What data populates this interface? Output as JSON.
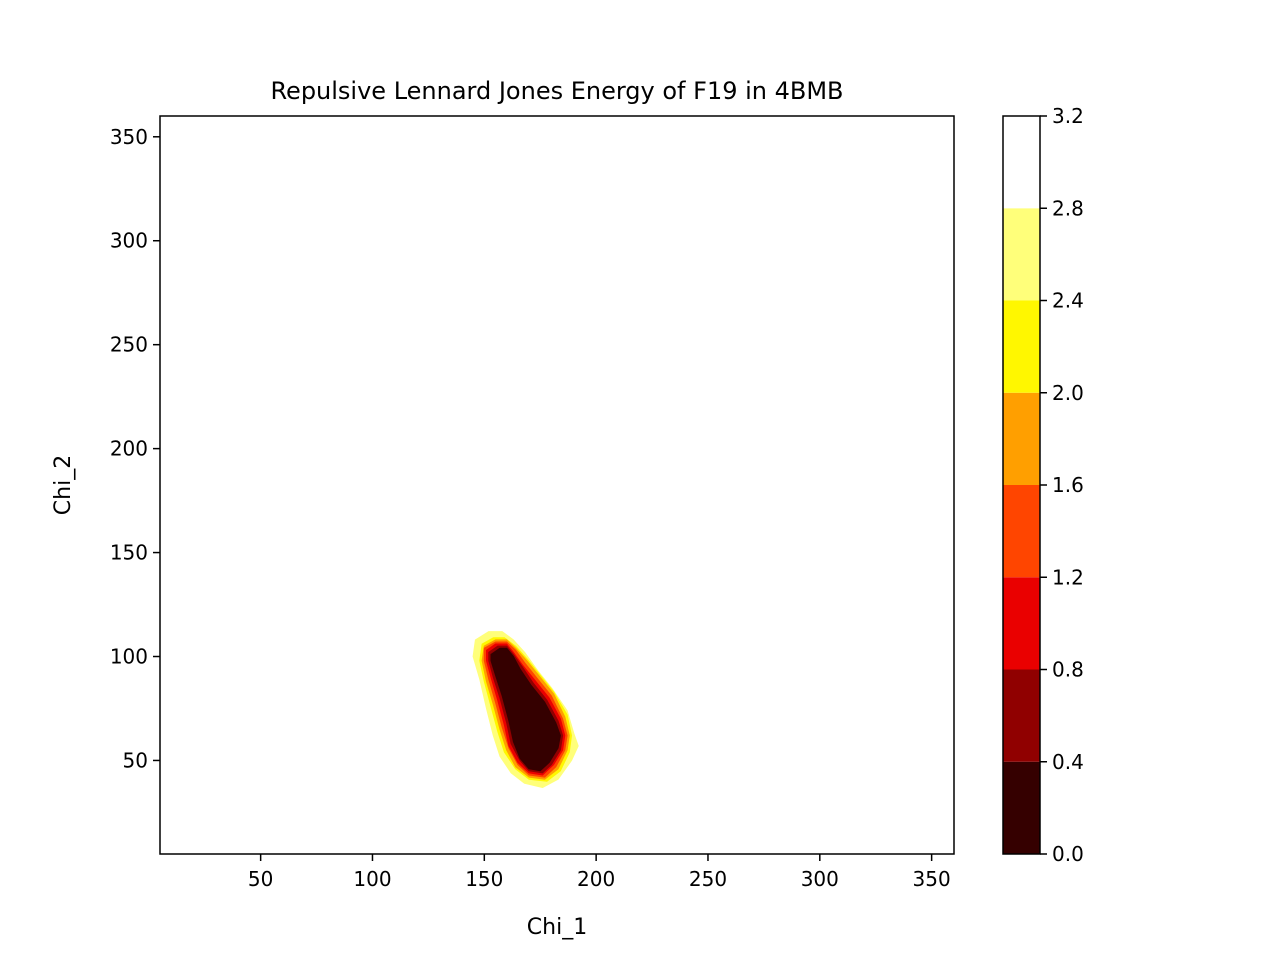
{
  "chart_data": {
    "type": "heatmap",
    "subtype": "filled-contour",
    "title": "Repulsive Lennard Jones Energy of F19 in 4BMB",
    "xlabel": "Chi_1",
    "ylabel": "Chi_2",
    "xlim": [
      5,
      360
    ],
    "ylim": [
      5,
      360
    ],
    "x_ticks": [
      50,
      100,
      150,
      200,
      250,
      300,
      350
    ],
    "y_ticks": [
      50,
      100,
      150,
      200,
      250,
      300,
      350
    ],
    "x_tick_labels": [
      "50",
      "100",
      "150",
      "200",
      "250",
      "300",
      "350"
    ],
    "y_tick_labels": [
      "50",
      "100",
      "150",
      "200",
      "250",
      "300",
      "350"
    ],
    "grid": false,
    "colormap": "hot",
    "colorbar": {
      "levels": [
        0.0,
        0.4,
        0.8,
        1.2,
        1.6,
        2.0,
        2.4,
        2.8,
        3.2
      ],
      "tick_labels": [
        "0.0",
        "0.4",
        "0.8",
        "1.2",
        "1.6",
        "2.0",
        "2.4",
        "2.8",
        "3.2"
      ],
      "colors": [
        "#350000",
        "#900000",
        "#ea0000",
        "#ff4500",
        "#ff9f00",
        "#fff700",
        "#ffff7a",
        "#ffffff"
      ]
    },
    "contour_regions": [
      {
        "level_range": [
          2.4,
          2.8
        ],
        "color": "#ffff7a",
        "polygon": [
          [
            146,
            108
          ],
          [
            152,
            112
          ],
          [
            158,
            112
          ],
          [
            163,
            108
          ],
          [
            168,
            102
          ],
          [
            174,
            93
          ],
          [
            180,
            85
          ],
          [
            187,
            74
          ],
          [
            190,
            63
          ],
          [
            192,
            57
          ],
          [
            189,
            50
          ],
          [
            183,
            41
          ],
          [
            176,
            37
          ],
          [
            168,
            39
          ],
          [
            162,
            44
          ],
          [
            157,
            52
          ],
          [
            154,
            62
          ],
          [
            151,
            75
          ],
          [
            148,
            89
          ],
          [
            145,
            100
          ]
        ]
      },
      {
        "level_range": [
          2.0,
          2.4
        ],
        "color": "#fff700",
        "polygon": [
          [
            149,
            106
          ],
          [
            154,
            109
          ],
          [
            159,
            109
          ],
          [
            164,
            105
          ],
          [
            169,
            99
          ],
          [
            175,
            91
          ],
          [
            181,
            83
          ],
          [
            187,
            72
          ],
          [
            189,
            62
          ],
          [
            188,
            54
          ],
          [
            184,
            45
          ],
          [
            178,
            40
          ],
          [
            170,
            41
          ],
          [
            164,
            46
          ],
          [
            159,
            54
          ],
          [
            156,
            64
          ],
          [
            153,
            76
          ],
          [
            150,
            88
          ],
          [
            148,
            98
          ]
        ]
      },
      {
        "level_range": [
          1.6,
          2.0
        ],
        "color": "#ff9f00",
        "polygon": [
          [
            150,
            105
          ],
          [
            155,
            108
          ],
          [
            160,
            108
          ],
          [
            164,
            104
          ],
          [
            169,
            98
          ],
          [
            175,
            90
          ],
          [
            181,
            82
          ],
          [
            186,
            71
          ],
          [
            188,
            62
          ],
          [
            187,
            55
          ],
          [
            183,
            46
          ],
          [
            177,
            41
          ],
          [
            170,
            42
          ],
          [
            164,
            47
          ],
          [
            160,
            55
          ],
          [
            157,
            65
          ],
          [
            154,
            77
          ],
          [
            151,
            88
          ],
          [
            149,
            98
          ]
        ]
      },
      {
        "level_range": [
          1.2,
          1.6
        ],
        "color": "#ff4500",
        "polygon": [
          [
            150,
            104
          ],
          [
            155,
            107
          ],
          [
            160,
            107
          ],
          [
            164,
            103
          ],
          [
            168,
            97
          ],
          [
            174,
            89
          ],
          [
            180,
            81
          ],
          [
            185,
            70
          ],
          [
            187,
            62
          ],
          [
            186,
            55
          ],
          [
            182,
            47
          ],
          [
            177,
            42
          ],
          [
            170,
            43
          ],
          [
            165,
            48
          ],
          [
            161,
            56
          ],
          [
            158,
            66
          ],
          [
            155,
            78
          ],
          [
            152,
            89
          ],
          [
            150,
            98
          ]
        ]
      },
      {
        "level_range": [
          0.8,
          1.2
        ],
        "color": "#ea0000",
        "polygon": [
          [
            151,
            103
          ],
          [
            155,
            106
          ],
          [
            160,
            106
          ],
          [
            163,
            102
          ],
          [
            167,
            96
          ],
          [
            173,
            88
          ],
          [
            179,
            80
          ],
          [
            184,
            70
          ],
          [
            186,
            62
          ],
          [
            185,
            55
          ],
          [
            181,
            48
          ],
          [
            176,
            43
          ],
          [
            170,
            44
          ],
          [
            165,
            49
          ],
          [
            161,
            57
          ],
          [
            159,
            67
          ],
          [
            156,
            79
          ],
          [
            153,
            90
          ],
          [
            151,
            98
          ]
        ]
      },
      {
        "level_range": [
          0.4,
          0.8
        ],
        "color": "#900000",
        "polygon": [
          [
            152,
            102
          ],
          [
            156,
            105
          ],
          [
            160,
            105
          ],
          [
            163,
            101
          ],
          [
            167,
            95
          ],
          [
            172,
            87
          ],
          [
            178,
            79
          ],
          [
            183,
            69
          ],
          [
            185,
            62
          ],
          [
            184,
            55
          ],
          [
            180,
            48
          ],
          [
            176,
            44
          ],
          [
            170,
            45
          ],
          [
            166,
            50
          ],
          [
            162,
            58
          ],
          [
            160,
            68
          ],
          [
            157,
            80
          ],
          [
            154,
            90
          ],
          [
            152,
            98
          ]
        ]
      },
      {
        "level_range": [
          0.0,
          0.4
        ],
        "color": "#350000",
        "polygon": [
          [
            153,
            101
          ],
          [
            157,
            104
          ],
          [
            160,
            104
          ],
          [
            163,
            100
          ],
          [
            166,
            94
          ],
          [
            171,
            86
          ],
          [
            177,
            78
          ],
          [
            182,
            68
          ],
          [
            184,
            62
          ],
          [
            183,
            56
          ],
          [
            179,
            49
          ],
          [
            175,
            45
          ],
          [
            170,
            46
          ],
          [
            166,
            51
          ],
          [
            163,
            59
          ],
          [
            161,
            69
          ],
          [
            158,
            81
          ],
          [
            155,
            91
          ],
          [
            153,
            98
          ]
        ]
      }
    ]
  }
}
